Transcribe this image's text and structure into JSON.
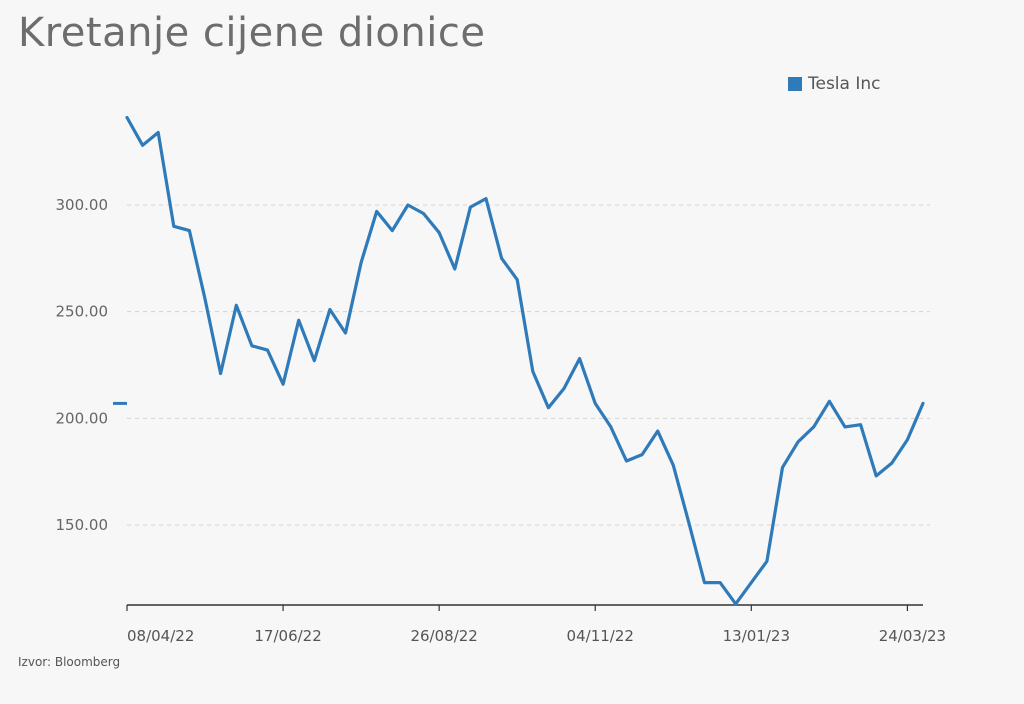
{
  "header": {
    "title": "Kretanje cijene dionice"
  },
  "footer": {
    "source": "Izvor: Bloomberg"
  },
  "colors": {
    "series": "#2f7ab8",
    "grid": "#d4d4d4",
    "axis": "#333333"
  },
  "chart_data": {
    "type": "line",
    "title": "Kretanje cijene dionice",
    "xlabel": "",
    "ylabel": "",
    "ylim": [
      112,
      345
    ],
    "yticks": [
      "150.00",
      "200.00",
      "250.00",
      "300.00"
    ],
    "ytick_values": [
      150,
      200,
      250,
      300
    ],
    "xtick_labels": [
      "08/04/22",
      "17/06/22",
      "26/08/22",
      "04/11/22",
      "13/01/23",
      "24/03/23"
    ],
    "xtick_index": [
      0,
      10,
      20,
      30,
      40,
      50
    ],
    "grid": true,
    "legend_position": "top-right",
    "series": [
      {
        "name": "Tesla Inc",
        "values": [
          341,
          328,
          334,
          290,
          288,
          256,
          221,
          253,
          234,
          232,
          216,
          246,
          227,
          251,
          240,
          273,
          297,
          288,
          300,
          296,
          287,
          270,
          299,
          303,
          275,
          265,
          222,
          205,
          214,
          228,
          207,
          196,
          180,
          183,
          194,
          178,
          151,
          123,
          123,
          113,
          123,
          133,
          177,
          189,
          196,
          208,
          196,
          197,
          173,
          179,
          190,
          207
        ]
      }
    ]
  }
}
